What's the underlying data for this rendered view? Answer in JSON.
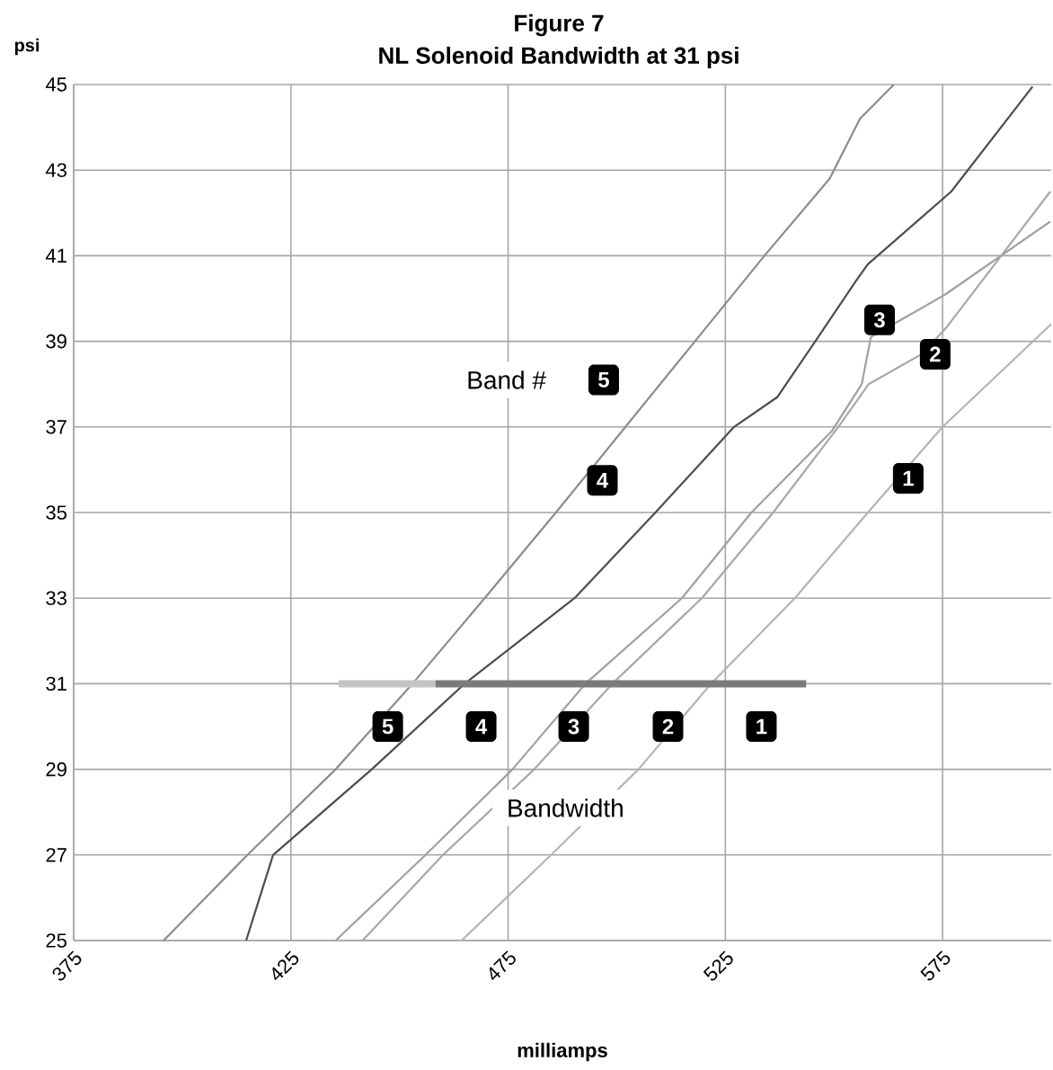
{
  "chart_data": {
    "type": "line",
    "title": "Figure 7",
    "subtitle": "NL Solenoid Bandwidth at 31 psi",
    "xlabel": "milliamps",
    "ylabel": "psi",
    "xlim": [
      375,
      600
    ],
    "xticks": [
      375,
      425,
      475,
      525,
      575
    ],
    "ylim": [
      25,
      45
    ],
    "yticks": [
      25,
      27,
      29,
      31,
      33,
      35,
      37,
      39,
      41,
      43,
      45
    ],
    "grid": true,
    "marker": "none",
    "line_style": "solid",
    "series": [
      {
        "color": "#8c8c8c",
        "x": [
          395.7,
          415,
          435.3,
          453,
          469.6,
          486,
          502,
          518,
          534,
          549,
          556,
          563.8
        ],
        "values": [
          25,
          27,
          29,
          31,
          33,
          35,
          37,
          39,
          41,
          42.8,
          44.2,
          45
        ]
      },
      {
        "color": "#4d4d4d",
        "x": [
          414.7,
          420.9,
          443.6,
          465,
          490.3,
          508.9,
          527,
          537,
          545.7,
          555,
          557.8,
          577,
          595.7
        ],
        "values": [
          25,
          27,
          29,
          31,
          33,
          35,
          37,
          37.7,
          39,
          40.4,
          40.8,
          42.5,
          44.95
        ]
      },
      {
        "color": "#a0a0a0",
        "x": [
          435.3,
          456,
          476,
          492.8,
          515,
          531,
          549.5,
          556.4,
          558.5,
          565.4,
          575.7,
          599.8
        ],
        "values": [
          25,
          27,
          29,
          31,
          33,
          35,
          36.9,
          38,
          39.1,
          39.5,
          40.1,
          41.8
        ]
      },
      {
        "color": "#a8a8a8",
        "x": [
          441.5,
          460,
          481,
          499,
          519.6,
          536,
          551,
          558,
          570.2,
          575.7,
          599.8
        ],
        "values": [
          25,
          27,
          29,
          31,
          33,
          35,
          37,
          38,
          38.7,
          39.3,
          42.5
        ]
      },
      {
        "color": "#b4b4b4",
        "x": [
          464.3,
          484.9,
          505,
          521.7,
          541,
          557.8,
          575,
          600
        ],
        "values": [
          25,
          27,
          29,
          31,
          33,
          35,
          37,
          39.4
        ]
      },
      {
        "color": "#c4c4c4",
        "x": [
          436,
          458.3
        ],
        "values": [
          31,
          31
        ]
      },
      {
        "color": "#7a7a7a",
        "x": [
          458.3,
          543.6
        ],
        "values": [
          31,
          31
        ]
      }
    ],
    "annotations": [
      "Band #",
      "Bandwidth",
      "5",
      "4",
      "3",
      "2",
      "1",
      "5",
      "4",
      "3",
      "2",
      "1"
    ]
  }
}
